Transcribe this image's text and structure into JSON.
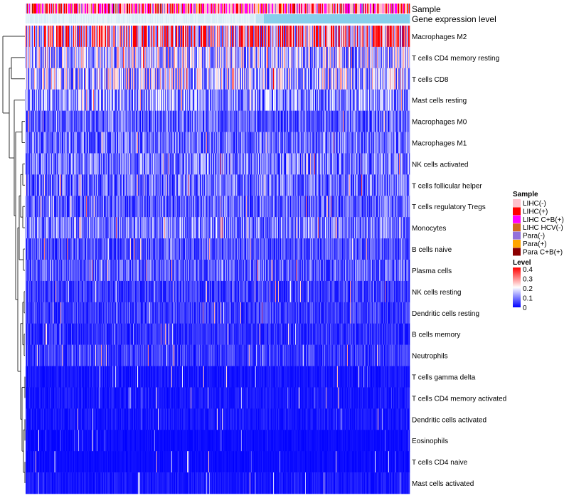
{
  "chart_data": {
    "type": "heatmap",
    "annotation_tracks": [
      "Sample",
      "Gene expression level"
    ],
    "gene_expression_color": "#87ceeb",
    "rows": [
      {
        "label": "Macrophages M2",
        "mean": 0.29
      },
      {
        "label": "T cells CD4 memory resting",
        "mean": 0.16
      },
      {
        "label": "T cells CD8",
        "mean": 0.16
      },
      {
        "label": "Mast cells resting",
        "mean": 0.12
      },
      {
        "label": "Macrophages M0",
        "mean": 0.08
      },
      {
        "label": "Macrophages M1",
        "mean": 0.09
      },
      {
        "label": "NK cells activated",
        "mean": 0.1
      },
      {
        "label": "T cells follicular helper",
        "mean": 0.09
      },
      {
        "label": "T cells regulatory  Tregs",
        "mean": 0.08
      },
      {
        "label": "Monocytes",
        "mean": 0.1
      },
      {
        "label": "B cells naive",
        "mean": 0.07
      },
      {
        "label": "Plasma cells",
        "mean": 0.08
      },
      {
        "label": "NK cells resting",
        "mean": 0.05
      },
      {
        "label": "Dendritic cells resting",
        "mean": 0.05
      },
      {
        "label": "B cells memory",
        "mean": 0.04
      },
      {
        "label": "Neutrophils",
        "mean": 0.05
      },
      {
        "label": "T cells gamma delta",
        "mean": 0.02
      },
      {
        "label": "T cells CD4 memory activated",
        "mean": 0.02
      },
      {
        "label": "Dendritic cells activated",
        "mean": 0.02
      },
      {
        "label": "Eosinophils",
        "mean": 0.01
      },
      {
        "label": "T cells CD4 naive",
        "mean": 0.01
      },
      {
        "label": "Mast cells activated",
        "mean": 0.02
      }
    ],
    "n_samples": 540,
    "sample_legend": {
      "title": "Sample",
      "entries": [
        {
          "label": "LIHC(-)",
          "color": "#ffc0cb"
        },
        {
          "label": "LIHC(+)",
          "color": "#ff0000"
        },
        {
          "label": "LIHC C+B(+)",
          "color": "#ff00ff"
        },
        {
          "label": "LIHC HCV(-)",
          "color": "#d2691e"
        },
        {
          "label": "Para(-)",
          "color": "#9370db"
        },
        {
          "label": "Para(+)",
          "color": "#ffa500"
        },
        {
          "label": "Para C+B(+)",
          "color": "#8b0000"
        }
      ]
    },
    "level_legend": {
      "title": "Level",
      "range": [
        0,
        0.4
      ],
      "ticks": [
        "0.4",
        "0.3",
        "0.2",
        "0.1",
        "0"
      ],
      "colors": [
        "#0000ff",
        "#ffffff",
        "#ff0000"
      ]
    }
  }
}
